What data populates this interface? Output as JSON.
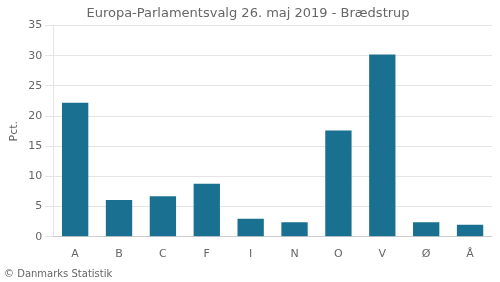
{
  "chart_data": {
    "type": "bar",
    "title": "Europa-Parlamentsvalg 26. maj 2019 - Brædstrup",
    "categories": [
      "A",
      "B",
      "C",
      "F",
      "I",
      "N",
      "O",
      "V",
      "Ø",
      "Å"
    ],
    "values": [
      22.2,
      6.1,
      6.7,
      8.8,
      3.0,
      2.4,
      17.6,
      30.2,
      2.4,
      2.0
    ],
    "color": "#1a7090",
    "ylim": [
      0,
      35
    ],
    "yticks": [
      0,
      5,
      10,
      15,
      20,
      25,
      30,
      35
    ],
    "ylabel": "Pct.",
    "footer": "© Danmarks Statistik",
    "grid": true
  }
}
